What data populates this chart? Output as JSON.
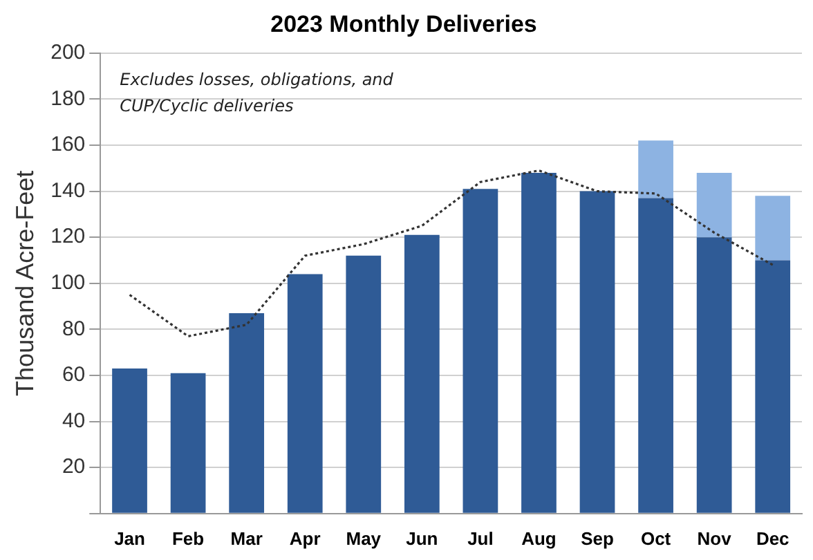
{
  "chart_data": {
    "type": "bar",
    "title": "2023 Monthly Deliveries",
    "ylabel": "Thousand Acre-Feet",
    "stacked": true,
    "categories": [
      "Jan",
      "Feb",
      "Mar",
      "Apr",
      "May",
      "Jun",
      "Jul",
      "Aug",
      "Sep",
      "Oct",
      "Nov",
      "Dec"
    ],
    "series": [
      {
        "color": "#2f5b96",
        "values": [
          63,
          61,
          87,
          104,
          112,
          121,
          141,
          148,
          140,
          137,
          120,
          110
        ]
      },
      {
        "color": "#8db3e2",
        "values": [
          null,
          null,
          null,
          null,
          null,
          null,
          null,
          null,
          null,
          25,
          28,
          28
        ]
      },
      {
        "type": "line",
        "color": "#333333",
        "line_style": "dotted",
        "marker": "none",
        "values": [
          95,
          77,
          82,
          112,
          117,
          125,
          144,
          149,
          140,
          139,
          122,
          108
        ]
      }
    ],
    "ylim": [
      0,
      200
    ],
    "yticks": [
      {
        "value": 0,
        "label": null
      },
      20,
      40,
      60,
      80,
      100,
      120,
      140,
      160,
      180,
      200
    ],
    "grid": "y",
    "legend": false,
    "annotations": [
      "Excludes losses, obligations, and CUP/Cyclic deliveries"
    ]
  }
}
